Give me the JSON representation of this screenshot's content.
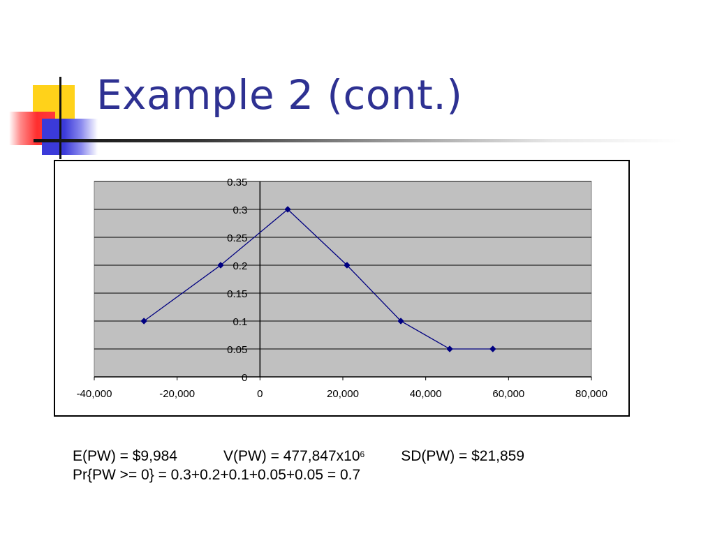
{
  "slide": {
    "title": "Example 2 (cont.)"
  },
  "stats": {
    "epw": "E(PW) = $9,984",
    "vpw_base": "V(PW) = 477,847x10",
    "vpw_exp": "6",
    "sdpw": "SD(PW) = $21,859",
    "prob": "Pr{PW >= 0} = 0.3+0.2+0.1+0.05+0.05 = 0.7"
  },
  "colors": {
    "title": "#2e3192",
    "series": "#000080",
    "plot_bg": "#c0c0c0"
  },
  "chart_data": {
    "type": "scatter",
    "line": true,
    "x": [
      -28000,
      -9500,
      6700,
      21000,
      34000,
      45800,
      56200
    ],
    "y": [
      0.1,
      0.2,
      0.3,
      0.2,
      0.1,
      0.05,
      0.05
    ],
    "xlim": [
      -40000,
      80000
    ],
    "ylim": [
      0,
      0.35
    ],
    "x_ticks": [
      -40000,
      -20000,
      0,
      20000,
      40000,
      60000,
      80000
    ],
    "x_tick_labels": [
      "-40,000",
      "-20,000",
      "0",
      "20,000",
      "40,000",
      "60,000",
      "80,000"
    ],
    "y_ticks": [
      0,
      0.05,
      0.1,
      0.15,
      0.2,
      0.25,
      0.3,
      0.35
    ],
    "y_tick_labels": [
      "0",
      "0.05",
      "0.1",
      "0.15",
      "0.2",
      "0.25",
      "0.3",
      "0.35"
    ],
    "grid": true,
    "legend": "none"
  }
}
